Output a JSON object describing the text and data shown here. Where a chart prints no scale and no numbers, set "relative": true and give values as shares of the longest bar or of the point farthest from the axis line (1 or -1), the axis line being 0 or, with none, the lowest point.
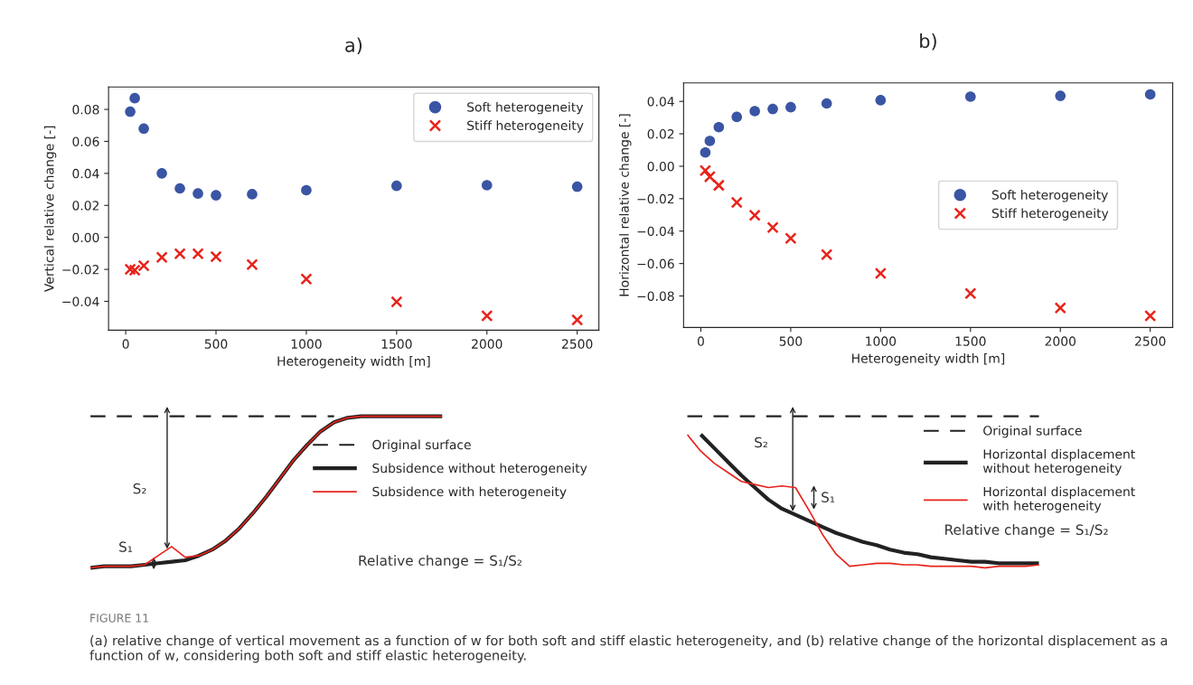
{
  "chart_data": [
    {
      "type": "scatter",
      "title": "a)",
      "xlabel": "Heterogeneity width [m]",
      "ylabel": "Vertical relative change [-]",
      "x": [
        25,
        50,
        100,
        200,
        300,
        400,
        500,
        700,
        1000,
        1500,
        2000,
        2500
      ],
      "series": [
        {
          "name": "Soft heterogeneity",
          "color": "#3a55a4",
          "marker": "circle",
          "values": [
            0.0786,
            0.087,
            0.068,
            0.04,
            0.0306,
            0.0274,
            0.0263,
            0.027,
            0.0295,
            0.0322,
            0.0326,
            0.0317
          ]
        },
        {
          "name": "Stiff heterogeneity",
          "color": "#e8231b",
          "marker": "cross",
          "values": [
            -0.02,
            -0.0205,
            -0.0177,
            -0.0125,
            -0.0102,
            -0.0102,
            -0.012,
            -0.017,
            -0.026,
            -0.0403,
            -0.049,
            -0.0516
          ]
        }
      ],
      "xlim": [
        -95,
        2620
      ],
      "xticks": [
        0,
        500,
        1000,
        1500,
        2000,
        2500
      ],
      "ylim": [
        -0.058,
        0.094
      ],
      "yticks": [
        {
          "value": -0.04,
          "label": "−0.04"
        },
        {
          "value": -0.02,
          "label": "−0.02"
        },
        {
          "value": 0,
          "label": "0.00"
        },
        {
          "value": 0.02,
          "label": "0.02"
        },
        {
          "value": 0.04,
          "label": "0.04"
        },
        {
          "value": 0.06,
          "label": "0.06"
        },
        {
          "value": 0.08,
          "label": "0.08"
        }
      ],
      "legend": "top right",
      "grid": false,
      "annotations": [
        "FIGURE 11",
        "(a) relative change of vertical movement as a function of w for both soft and stiff elastic heterogeneity, and (b) relative change of the horizontal displacement as a function of w, considering both soft and stiff elastic heterogeneity."
      ]
    },
    {
      "type": "scatter",
      "title": "b)",
      "xlabel": "Heterogeneity width [m]",
      "ylabel": "Horizontal relative change [-]",
      "x": [
        25,
        50,
        100,
        200,
        300,
        400,
        500,
        700,
        1000,
        1500,
        2000,
        2500
      ],
      "series": [
        {
          "name": "Soft heterogeneity",
          "color": "#3a55a4",
          "marker": "circle",
          "values": [
            0.0085,
            0.0156,
            0.0241,
            0.0304,
            0.034,
            0.0353,
            0.0364,
            0.0387,
            0.0407,
            0.0429,
            0.0434,
            0.0443
          ]
        },
        {
          "name": "Stiff heterogeneity",
          "color": "#e8231b",
          "marker": "cross",
          "values": [
            -0.0027,
            -0.0065,
            -0.0118,
            -0.0223,
            -0.0302,
            -0.0378,
            -0.0445,
            -0.0545,
            -0.0661,
            -0.0784,
            -0.0874,
            -0.0923
          ]
        }
      ],
      "xlim": [
        -96,
        2625
      ],
      "xticks": [
        0,
        500,
        1000,
        1500,
        2000,
        2500
      ],
      "ylim": [
        -0.0994,
        0.0514
      ],
      "yticks": [
        {
          "value": -0.08,
          "label": "−0.08"
        },
        {
          "value": -0.06,
          "label": "−0.06"
        },
        {
          "value": -0.04,
          "label": "−0.04"
        },
        {
          "value": -0.02,
          "label": "−0.02"
        },
        {
          "value": 0,
          "label": "0.00"
        },
        {
          "value": 0.02,
          "label": "0.02"
        },
        {
          "value": 0.04,
          "label": "0.04"
        }
      ],
      "legend": "right",
      "grid": false
    },
    {
      "type": "line",
      "relative": true,
      "categories": [
        null,
        null,
        null,
        null,
        null,
        null,
        null,
        null,
        null,
        null,
        null,
        null,
        null,
        null,
        null,
        null,
        null,
        null,
        null,
        null,
        null,
        null,
        null,
        null,
        null,
        null,
        null
      ],
      "series": [
        {
          "name": "Original surface",
          "color": "#222222",
          "line_style": "dashed",
          "values": [
            1,
            1,
            1,
            1,
            1,
            1,
            1,
            1,
            1,
            1,
            1,
            1,
            1,
            1,
            1,
            1,
            1,
            1,
            1,
            null,
            null,
            null,
            null,
            null,
            null,
            null,
            null
          ]
        },
        {
          "name": "Subsidence without heterogeneity",
          "color": "#222222",
          "line_style": "solid",
          "values": [
            0,
            0.01,
            0.01,
            0.01,
            0.02,
            0.03,
            0.04,
            0.05,
            0.08,
            0.12,
            0.18,
            0.26,
            0.36,
            0.47,
            0.59,
            0.71,
            0.81,
            0.9,
            0.96,
            0.99,
            1,
            1,
            1,
            1,
            1,
            1,
            1
          ]
        },
        {
          "name": "Subsidence with heterogeneity",
          "color": "#e8231b",
          "line_style": "solid",
          "values": [
            0,
            0.01,
            0.01,
            0.01,
            0.02,
            0.08,
            0.14,
            0.07,
            0.08,
            0.12,
            0.18,
            0.26,
            0.36,
            0.47,
            0.59,
            0.71,
            0.81,
            0.9,
            0.96,
            0.99,
            1,
            1,
            1,
            1,
            1,
            1,
            1
          ]
        }
      ],
      "legend": "right",
      "annotations": [
        "S₂",
        "S₁",
        "Relative change = S₁/S₂"
      ]
    },
    {
      "type": "line",
      "relative": true,
      "categories": [
        null,
        null,
        null,
        null,
        null,
        null,
        null,
        null,
        null,
        null,
        null,
        null,
        null,
        null,
        null,
        null,
        null,
        null,
        null,
        null,
        null,
        null,
        null,
        null,
        null,
        null,
        null
      ],
      "series": [
        {
          "name": "Original surface",
          "color": "#222222",
          "line_style": "dashed",
          "values": [
            1,
            1,
            1,
            1,
            1,
            1,
            1,
            1,
            1,
            1,
            1,
            1,
            1,
            1,
            1,
            1,
            1,
            1,
            1,
            1,
            1,
            1,
            1,
            1,
            1,
            1,
            1
          ]
        },
        {
          "name": "Horizontal displacement\nwithout heterogeneity",
          "color": "#222222",
          "line_style": "solid",
          "values": [
            null,
            0.88,
            0.79,
            0.7,
            0.61,
            0.53,
            0.45,
            0.39,
            0.35,
            0.31,
            0.27,
            0.23,
            0.2,
            0.17,
            0.15,
            0.12,
            0.1,
            0.09,
            0.07,
            0.06,
            0.05,
            0.04,
            0.04,
            0.03,
            0.03,
            0.03,
            0.03
          ]
        },
        {
          "name": "Horizontal displacement\nwith heterogeneity",
          "color": "#e8231b",
          "line_style": "solid",
          "values": [
            0.88,
            0.77,
            0.69,
            0.63,
            0.57,
            0.55,
            0.53,
            0.54,
            0.53,
            0.38,
            0.22,
            0.09,
            0.01,
            0.02,
            0.03,
            0.03,
            0.02,
            0.02,
            0.01,
            0.01,
            0.01,
            0.01,
            0,
            0.01,
            0.01,
            0.01,
            0.02
          ]
        }
      ],
      "legend": "right",
      "annotations": [
        "S₂",
        "S₁",
        "Relative change = S₁/S₂"
      ]
    }
  ]
}
